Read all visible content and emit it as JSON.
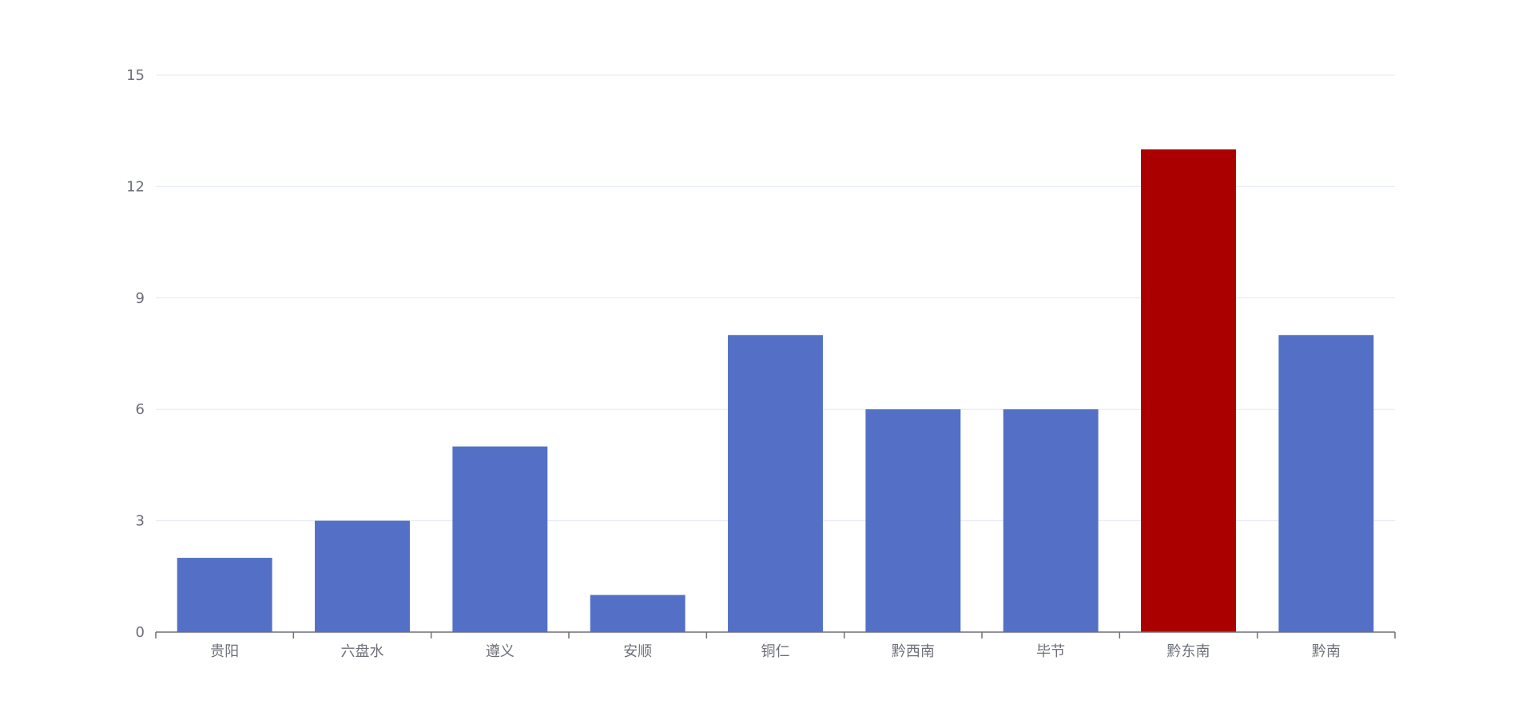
{
  "chart_data": {
    "type": "bar",
    "categories": [
      "贵阳",
      "六盘水",
      "遵义",
      "安顺",
      "铜仁",
      "黔西南",
      "毕节",
      "黔东南",
      "黔南"
    ],
    "values": [
      2,
      3,
      5,
      1,
      8,
      6,
      6,
      13,
      8
    ],
    "ylim": [
      0,
      15
    ],
    "yticks": [
      0,
      3,
      6,
      9,
      12,
      15
    ],
    "grid": true,
    "colors": {
      "bar": "#5470c6",
      "highlight": "#aa0000",
      "grid": "#e6e9f8",
      "axis": "#6e7079",
      "text": "#6e7079"
    },
    "highlight_category": "黔东南"
  }
}
